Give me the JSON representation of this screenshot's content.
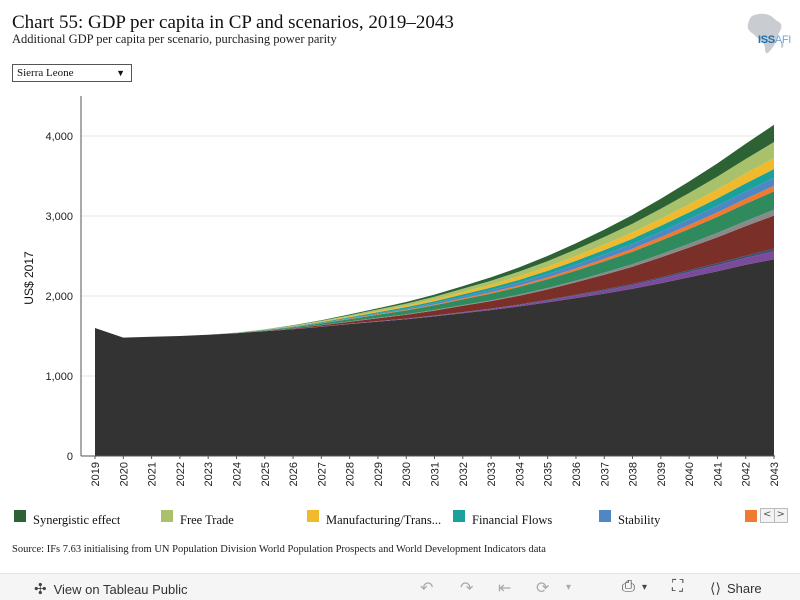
{
  "header": {
    "title": "Chart 55: GDP per capita in CP and scenarios, 2019–2043",
    "subtitle": "Additional GDP per capita per scenario, purchasing power parity",
    "logo_text_bold": "ISS",
    "logo_text_light": "AFI"
  },
  "filter": {
    "selected": "Sierra Leone",
    "caret": "▼"
  },
  "source": "Source: IFs 7.63 initialising from UN Population Division World Population Prospects and World Development Indicators data",
  "legend": {
    "items": [
      {
        "label": "Synergistic effect",
        "color": "#2d6235"
      },
      {
        "label": "Free Trade",
        "color": "#a9c16a"
      },
      {
        "label": "Manufacturing/Trans...",
        "color": "#f0ba2c"
      },
      {
        "label": "Financial Flows",
        "color": "#1aa19c"
      },
      {
        "label": "Stability",
        "color": "#4f87c4"
      },
      {
        "label": "",
        "color": "#f07a30"
      }
    ],
    "nav_prev": "<",
    "nav_next": ">"
  },
  "toolbar": {
    "view_label": "View on Tableau Public",
    "share_label": "Share"
  },
  "chart_data": {
    "type": "area",
    "stacked": true,
    "ylabel": "US$ 2017",
    "ylim": [
      0,
      4500
    ],
    "yticks": [
      0,
      1000,
      2000,
      3000,
      4000
    ],
    "ytick_labels": [
      "0",
      "1,000",
      "2,000",
      "3,000",
      "4,000"
    ],
    "grid": true,
    "x": [
      "2019",
      "2020",
      "2021",
      "2022",
      "2023",
      "2024",
      "2025",
      "2026",
      "2027",
      "2028",
      "2029",
      "2030",
      "2031",
      "2032",
      "2033",
      "2034",
      "2035",
      "2036",
      "2037",
      "2038",
      "2039",
      "2040",
      "2041",
      "2042",
      "2043"
    ],
    "series": [
      {
        "color": "#333333",
        "values": [
          1600,
          1480,
          1490,
          1500,
          1515,
          1535,
          1560,
          1585,
          1615,
          1650,
          1680,
          1710,
          1745,
          1785,
          1825,
          1870,
          1920,
          1975,
          2030,
          2090,
          2160,
          2235,
          2310,
          2390,
          2460
        ]
      },
      {
        "color": "#7b4a9a",
        "values": [
          0,
          0,
          0,
          0,
          0,
          0,
          0,
          2,
          3,
          4,
          5,
          6,
          8,
          10,
          13,
          18,
          24,
          31,
          38,
          46,
          55,
          65,
          75,
          86,
          98
        ]
      },
      {
        "color": "#3a4f7a",
        "values": [
          0,
          0,
          0,
          0,
          0,
          0,
          0,
          0,
          1,
          1,
          2,
          2,
          3,
          4,
          5,
          6,
          8,
          10,
          13,
          15,
          18,
          21,
          24,
          28,
          32
        ]
      },
      {
        "color": "#7a3028",
        "values": [
          0,
          0,
          0,
          0,
          0,
          0,
          3,
          8,
          15,
          24,
          36,
          48,
          62,
          78,
          93,
          110,
          130,
          155,
          185,
          215,
          250,
          285,
          325,
          370,
          415
        ]
      },
      {
        "color": "#8a8a8a",
        "values": [
          0,
          0,
          0,
          0,
          0,
          0,
          1,
          2,
          3,
          4,
          5,
          6,
          8,
          10,
          12,
          15,
          18,
          22,
          27,
          33,
          40,
          47,
          55,
          63,
          72
        ]
      },
      {
        "color": "#2f8a5e",
        "values": [
          0,
          0,
          0,
          0,
          0,
          2,
          6,
          12,
          20,
          28,
          38,
          48,
          58,
          70,
          82,
          95,
          110,
          125,
          140,
          155,
          170,
          185,
          200,
          215,
          230
        ]
      },
      {
        "color": "#f07a30",
        "values": [
          0,
          0,
          0,
          0,
          0,
          0,
          1,
          2,
          3,
          4,
          6,
          8,
          10,
          13,
          16,
          19,
          23,
          27,
          32,
          37,
          43,
          49,
          56,
          63,
          70
        ]
      },
      {
        "color": "#4f87c4",
        "values": [
          0,
          0,
          0,
          0,
          0,
          1,
          2,
          4,
          6,
          9,
          12,
          15,
          19,
          23,
          28,
          33,
          39,
          45,
          52,
          59,
          67,
          75,
          83,
          92,
          100
        ]
      },
      {
        "color": "#1aa19c",
        "values": [
          0,
          0,
          0,
          0,
          0,
          1,
          3,
          5,
          8,
          11,
          14,
          18,
          22,
          27,
          32,
          38,
          44,
          51,
          58,
          66,
          74,
          83,
          92,
          101,
          110
        ]
      },
      {
        "color": "#f0ba2c",
        "values": [
          0,
          0,
          0,
          0,
          0,
          1,
          2,
          4,
          7,
          10,
          14,
          18,
          23,
          29,
          35,
          42,
          50,
          59,
          68,
          78,
          89,
          100,
          112,
          125,
          138
        ]
      },
      {
        "color": "#a9c16a",
        "values": [
          0,
          0,
          0,
          0,
          0,
          1,
          3,
          6,
          10,
          15,
          20,
          26,
          33,
          41,
          50,
          60,
          70,
          82,
          95,
          110,
          125,
          142,
          160,
          180,
          200
        ]
      },
      {
        "color": "#2d6235",
        "values": [
          0,
          0,
          0,
          0,
          0,
          1,
          2,
          4,
          7,
          10,
          14,
          20,
          26,
          34,
          43,
          53,
          65,
          78,
          92,
          108,
          125,
          144,
          165,
          190,
          215
        ]
      }
    ]
  }
}
